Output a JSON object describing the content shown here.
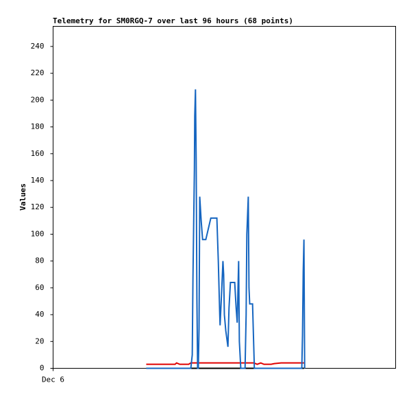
{
  "chart_data": {
    "type": "line",
    "title": "Telemetry for SM0RGQ-7 over last 96 hours (68 points)",
    "y_label": "Values",
    "xlim": [
      0,
      96
    ],
    "xticks": [
      {
        "value": 0,
        "label": "Dec 6"
      }
    ],
    "ylim": [
      0,
      255
    ],
    "yticks": [
      0,
      20,
      40,
      60,
      80,
      100,
      120,
      140,
      160,
      180,
      200,
      220,
      240
    ],
    "grid": false,
    "series": [
      {
        "color": "#000000",
        "x": [
          26.1,
          70.3
        ],
        "values": [
          0,
          0
        ]
      },
      {
        "color": "#e00000",
        "x": [
          26.1,
          34.2,
          34.6,
          35.5,
          38.0,
          38.6,
          56.3,
          57.2,
          58.2,
          59.1,
          61.1,
          62.0,
          63.9,
          70.3
        ],
        "values": [
          3,
          3,
          4,
          3,
          3,
          4,
          4,
          3,
          4,
          3,
          3,
          3.5,
          4,
          4
        ]
      },
      {
        "color": "#1565c0",
        "x": [
          26.1,
          38.6,
          39.0,
          39.2,
          39.4,
          39.6,
          39.7,
          39.9,
          40.1,
          40.3,
          40.5,
          40.7,
          40.9,
          41.1,
          41.5,
          41.9,
          42.8,
          44.2,
          45.9,
          46.3,
          46.7,
          46.8,
          47.2,
          47.6,
          47.8,
          48.0,
          48.4,
          49.0,
          49.3,
          49.7,
          50.9,
          51.3,
          51.6,
          52.0,
          52.2,
          52.6,
          53.8,
          54.1,
          54.3,
          54.7,
          54.9,
          55.1,
          55.9,
          56.3,
          56.4,
          69.7,
          69.9,
          70.1,
          70.3,
          70.5
        ],
        "values": [
          0,
          0,
          10,
          68,
          108,
          148,
          188,
          208,
          155,
          52,
          0,
          0,
          30,
          128,
          110,
          96,
          96,
          112,
          112,
          80,
          40,
          32,
          55,
          80,
          70,
          40,
          28,
          16,
          45,
          64,
          64,
          45,
          34,
          80,
          20,
          0,
          0,
          40,
          100,
          128,
          60,
          48,
          48,
          10,
          0,
          0,
          25,
          72,
          96,
          0
        ]
      }
    ]
  }
}
